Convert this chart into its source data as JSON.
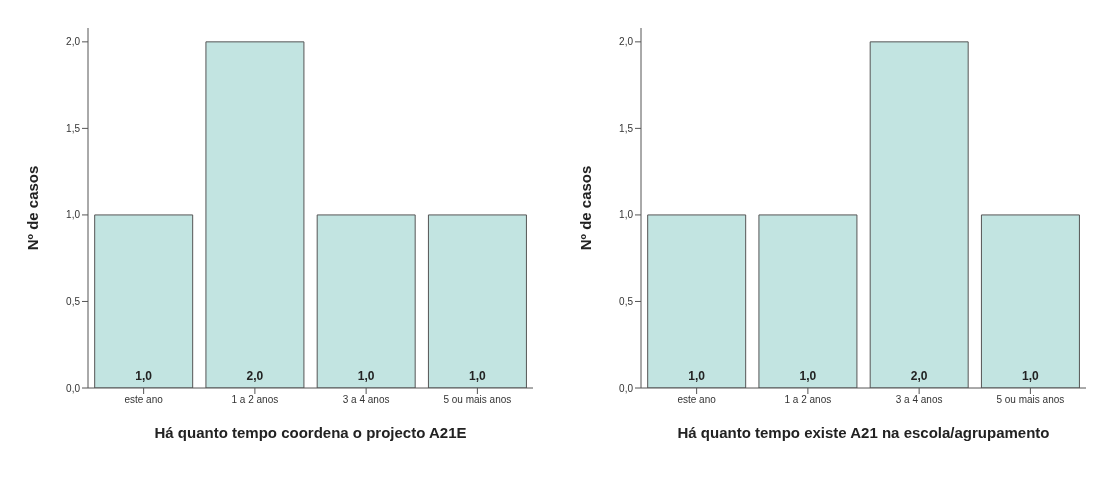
{
  "chart_data": [
    {
      "type": "bar",
      "xlabel": "Há quanto tempo coordena o projecto A21E",
      "ylabel": "Nº de casos",
      "categories": [
        "este ano",
        "1 a 2 anos",
        "3 a 4 anos",
        "5 ou mais anos"
      ],
      "values": [
        1,
        2,
        1,
        1
      ],
      "value_labels": [
        "1,0",
        "2,0",
        "1,0",
        "1,0"
      ],
      "color": "#c2e4e1",
      "ylim": [
        0,
        2.08
      ],
      "yticks": [
        {
          "value": 0,
          "label": "0,0"
        },
        {
          "value": 0.5,
          "label": "0,5"
        },
        {
          "value": 1,
          "label": "1,0"
        },
        {
          "value": 1.5,
          "label": "1,5"
        },
        {
          "value": 2,
          "label": "2,0"
        }
      ],
      "grid": false
    },
    {
      "type": "bar",
      "xlabel": "Há quanto tempo existe A21 na escola/agrupamento",
      "ylabel": "Nº de casos",
      "categories": [
        "este ano",
        "1 a 2 anos",
        "3 a 4 anos",
        "5 ou mais anos"
      ],
      "values": [
        1,
        1,
        2,
        1
      ],
      "value_labels": [
        "1,0",
        "1,0",
        "2,0",
        "1,0"
      ],
      "color": "#c2e4e1",
      "ylim": [
        0,
        2.08
      ],
      "yticks": [
        {
          "value": 0,
          "label": "0,0"
        },
        {
          "value": 0.5,
          "label": "0,5"
        },
        {
          "value": 1,
          "label": "1,0"
        },
        {
          "value": 1.5,
          "label": "1,5"
        },
        {
          "value": 2,
          "label": "2,0"
        }
      ],
      "grid": false
    }
  ]
}
